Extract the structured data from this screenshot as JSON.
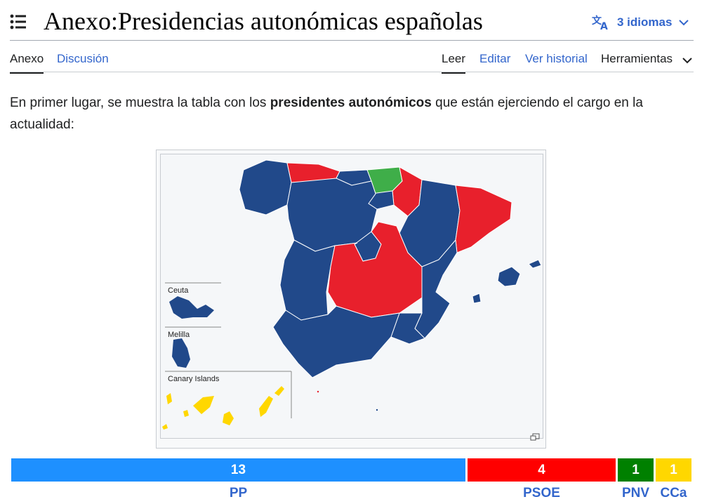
{
  "header": {
    "title": "Anexo:Presidencias autonómicas españolas",
    "languages_label": "3 idiomas"
  },
  "tabs": {
    "annex": "Anexo",
    "discussion": "Discusión",
    "read": "Leer",
    "edit": "Editar",
    "history": "Ver historial",
    "tools": "Herramientas"
  },
  "content": {
    "intro_before": "En primer lugar, se muestra la tabla con los ",
    "intro_bold": "presidentes autonómicos",
    "intro_after": " que están ejerciendo el cargo en la actualidad:"
  },
  "map": {
    "insets": {
      "ceuta": "Ceuta",
      "melilla": "Melilla",
      "canary": "Canary Islands"
    }
  },
  "colors": {
    "pp_map": "#21498a",
    "psoe_map": "#e8202c",
    "pnv_map": "#3fae49",
    "cca_map": "#ffd700",
    "pp_bar": "#1e90ff",
    "psoe_bar": "#ff0000",
    "pnv_bar": "#008000",
    "cca_bar": "#ffd700"
  },
  "seats": [
    {
      "party": "PP",
      "count": "13"
    },
    {
      "party": "PSOE",
      "count": "4"
    },
    {
      "party": "PNV",
      "count": "1"
    },
    {
      "party": "CCa",
      "count": "1"
    }
  ]
}
